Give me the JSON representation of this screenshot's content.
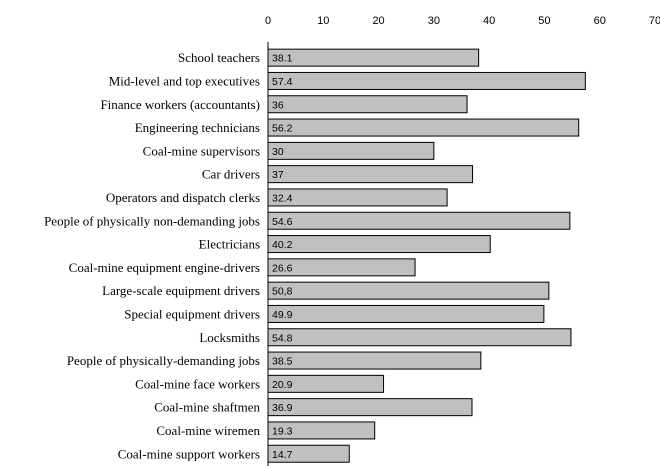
{
  "chart_data": {
    "type": "bar",
    "orientation": "horizontal",
    "categories": [
      "School teachers",
      "Mid-level and top executives",
      "Finance workers (accountants)",
      "Engineering technicians",
      "Coal-mine supervisors",
      "Car drivers",
      "Operators and dispatch clerks",
      "People of physically non-demanding jobs",
      "Electricians",
      "Coal-mine equipment engine-drivers",
      "Large-scale equipment drivers",
      "Special equipment drivers",
      "Locksmiths",
      "People of physically-demanding jobs",
      "Coal-mine face workers",
      "Coal-mine shaftmen",
      "Coal-mine wiremen",
      "Coal-mine support workers"
    ],
    "values": [
      38.1,
      57.4,
      36,
      56.2,
      30,
      37,
      32.4,
      54.6,
      40.2,
      26.6,
      50.8,
      49.9,
      54.8,
      38.5,
      20.9,
      36.9,
      19.3,
      14.7
    ],
    "data_labels": [
      "38.1",
      "57.4",
      "36",
      "56.2",
      "30",
      "37",
      "32.4",
      "54.6",
      "40.2",
      "26.6",
      "50,8",
      "49.9",
      "54.8",
      "38.5",
      "20.9",
      "36.9",
      "19.3",
      "14.7"
    ],
    "xlim": [
      0,
      70
    ],
    "xticks": [
      "0",
      "10",
      "20",
      "30",
      "40",
      "50",
      "60",
      "70"
    ],
    "tick_values": [
      0,
      10,
      20,
      30,
      40,
      50,
      60,
      70
    ],
    "title": "",
    "xlabel": "",
    "ylabel": "",
    "grid": false,
    "bar_color": "#c0c0c0",
    "legend": "none"
  }
}
